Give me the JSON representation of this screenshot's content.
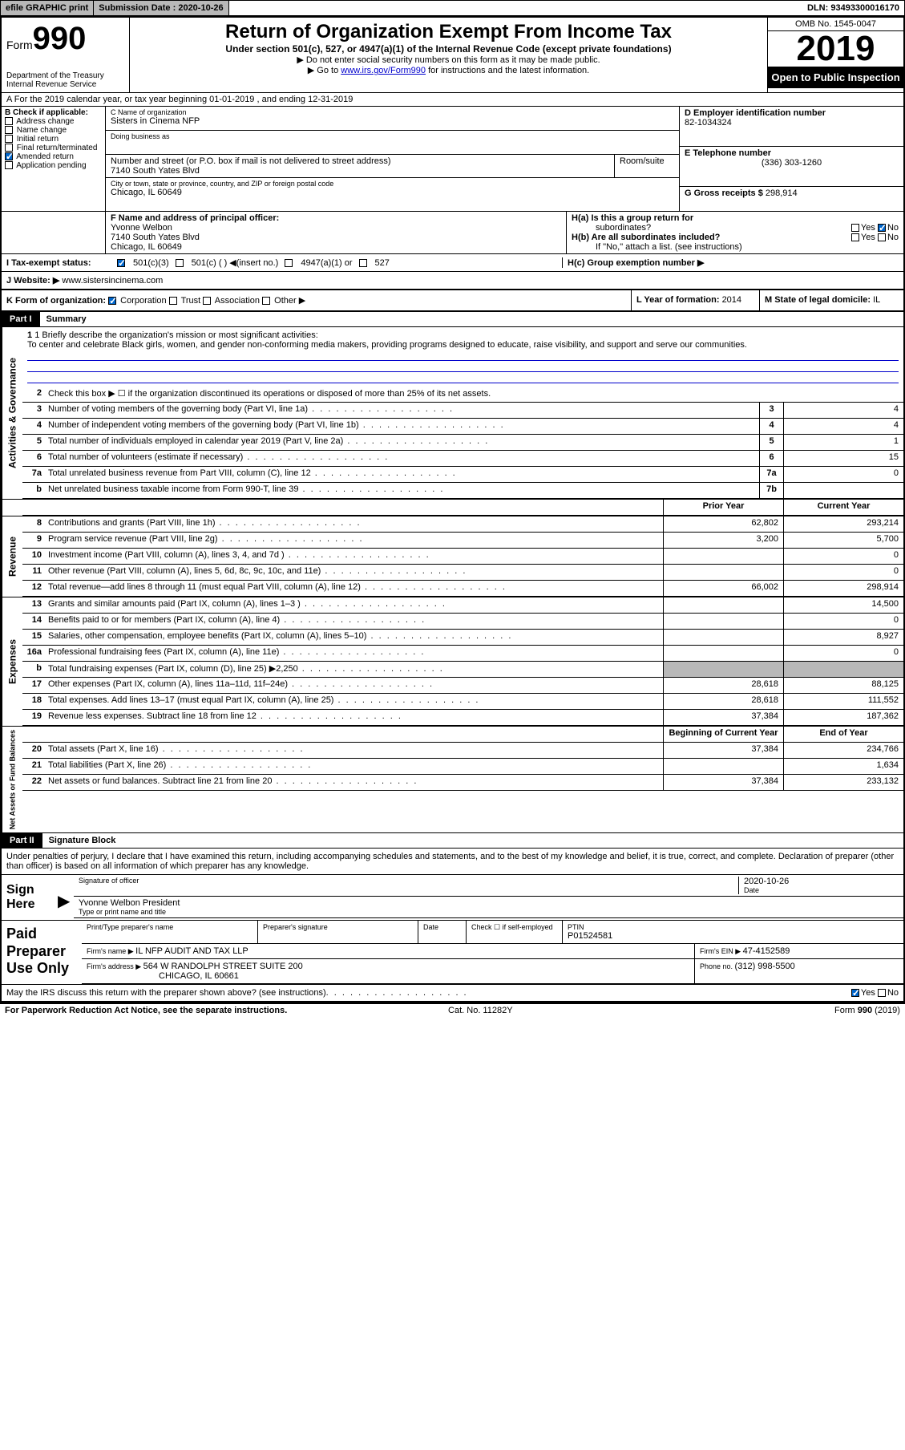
{
  "topbar": {
    "efile": "efile GRAPHIC print",
    "sub_label": "Submission Date : ",
    "sub_date": "2020-10-26",
    "dln_label": "DLN: ",
    "dln": "93493300016170"
  },
  "header": {
    "form_word": "Form",
    "form_num": "990",
    "dept": "Department of the Treasury\nInternal Revenue Service",
    "title": "Return of Organization Exempt From Income Tax",
    "sub1": "Under section 501(c), 527, or 4947(a)(1) of the Internal Revenue Code (except private foundations)",
    "sub2": "▶ Do not enter social security numbers on this form as it may be made public.",
    "sub3_pre": "▶ Go to ",
    "sub3_link": "www.irs.gov/Form990",
    "sub3_post": " for instructions and the latest information.",
    "omb": "OMB No. 1545-0047",
    "year": "2019",
    "open": "Open to Public Inspection"
  },
  "row_a": "A For the 2019 calendar year, or tax year beginning 01-01-2019    , and ending 12-31-2019",
  "col_b": {
    "title": "B Check if applicable:",
    "items": [
      "Address change",
      "Name change",
      "Initial return",
      "Final return/terminated",
      "Amended return",
      "Application pending"
    ],
    "checked": [
      false,
      false,
      false,
      false,
      true,
      false
    ]
  },
  "col_c": {
    "name_lbl": "C Name of organization",
    "name": "Sisters in Cinema NFP",
    "dba_lbl": "Doing business as",
    "dba": "",
    "addr_lbl": "Number and street (or P.O. box if mail is not delivered to street address)",
    "room_lbl": "Room/suite",
    "addr": "7140 South Yates Blvd",
    "city_lbl": "City or town, state or province, country, and ZIP or foreign postal code",
    "city": "Chicago, IL  60649"
  },
  "col_d": {
    "ein_lbl": "D Employer identification number",
    "ein": "82-1034324",
    "tel_lbl": "E Telephone number",
    "tel": "(336) 303-1260",
    "gross_lbl": "G Gross receipts $ ",
    "gross": "298,914"
  },
  "row_f": {
    "lbl": "F  Name and address of principal officer:",
    "name": "Yvonne Welbon",
    "addr1": "7140 South Yates Blvd",
    "addr2": "Chicago, IL  60649"
  },
  "row_h": {
    "ha": "H(a)  Is this a group return for",
    "ha2": "subordinates?",
    "hb": "H(b)  Are all subordinates included?",
    "hb2": "If \"No,\" attach a list. (see instructions)",
    "hc": "H(c)  Group exemption number ▶",
    "yes": "Yes",
    "no": "No"
  },
  "row_i": {
    "lbl": "I  Tax-exempt status:",
    "opts": [
      "501(c)(3)",
      "501(c) (  ) ◀(insert no.)",
      "4947(a)(1) or",
      "527"
    ]
  },
  "row_j": {
    "lbl": "J  Website: ▶ ",
    "val": "www.sistersincinema.com"
  },
  "row_k": {
    "lbl": "K Form of organization:",
    "opts": [
      "Corporation",
      "Trust",
      "Association",
      "Other ▶"
    ],
    "l_lbl": "L Year of formation: ",
    "l_val": "2014",
    "m_lbl": "M State of legal domicile: ",
    "m_val": "IL"
  },
  "part1": {
    "hdr": "Part I",
    "title": "Summary",
    "line1_lbl": "1  Briefly describe the organization's mission or most significant activities:",
    "line1_txt": "To center and celebrate Black girls, women, and gender non-conforming media makers, providing programs designed to educate, raise visibility, and support and serve our communities.",
    "line2": "Check this box ▶ ☐  if the organization discontinued its operations or disposed of more than 25% of its net assets.",
    "prior_hdr": "Prior Year",
    "curr_hdr": "Current Year",
    "boy_hdr": "Beginning of Current Year",
    "eoy_hdr": "End of Year"
  },
  "lines_gov": [
    {
      "n": "3",
      "d": "Number of voting members of the governing body (Part VI, line 1a)",
      "box": "3",
      "v": "4"
    },
    {
      "n": "4",
      "d": "Number of independent voting members of the governing body (Part VI, line 1b)",
      "box": "4",
      "v": "4"
    },
    {
      "n": "5",
      "d": "Total number of individuals employed in calendar year 2019 (Part V, line 2a)",
      "box": "5",
      "v": "1"
    },
    {
      "n": "6",
      "d": "Total number of volunteers (estimate if necessary)",
      "box": "6",
      "v": "15"
    },
    {
      "n": "7a",
      "d": "Total unrelated business revenue from Part VIII, column (C), line 12",
      "box": "7a",
      "v": "0"
    },
    {
      "n": "b",
      "d": "Net unrelated business taxable income from Form 990-T, line 39",
      "box": "7b",
      "v": ""
    }
  ],
  "lines_rev": [
    {
      "n": "8",
      "d": "Contributions and grants (Part VIII, line 1h)",
      "p": "62,802",
      "c": "293,214"
    },
    {
      "n": "9",
      "d": "Program service revenue (Part VIII, line 2g)",
      "p": "3,200",
      "c": "5,700"
    },
    {
      "n": "10",
      "d": "Investment income (Part VIII, column (A), lines 3, 4, and 7d )",
      "p": "",
      "c": "0"
    },
    {
      "n": "11",
      "d": "Other revenue (Part VIII, column (A), lines 5, 6d, 8c, 9c, 10c, and 11e)",
      "p": "",
      "c": "0"
    },
    {
      "n": "12",
      "d": "Total revenue—add lines 8 through 11 (must equal Part VIII, column (A), line 12)",
      "p": "66,002",
      "c": "298,914"
    }
  ],
  "lines_exp": [
    {
      "n": "13",
      "d": "Grants and similar amounts paid (Part IX, column (A), lines 1–3 )",
      "p": "",
      "c": "14,500"
    },
    {
      "n": "14",
      "d": "Benefits paid to or for members (Part IX, column (A), line 4)",
      "p": "",
      "c": "0"
    },
    {
      "n": "15",
      "d": "Salaries, other compensation, employee benefits (Part IX, column (A), lines 5–10)",
      "p": "",
      "c": "8,927"
    },
    {
      "n": "16a",
      "d": "Professional fundraising fees (Part IX, column (A), line 11e)",
      "p": "",
      "c": "0"
    },
    {
      "n": "b",
      "d": "Total fundraising expenses (Part IX, column (D), line 25) ▶2,250",
      "p": "shaded",
      "c": "shaded"
    },
    {
      "n": "17",
      "d": "Other expenses (Part IX, column (A), lines 11a–11d, 11f–24e)",
      "p": "28,618",
      "c": "88,125"
    },
    {
      "n": "18",
      "d": "Total expenses. Add lines 13–17 (must equal Part IX, column (A), line 25)",
      "p": "28,618",
      "c": "111,552"
    },
    {
      "n": "19",
      "d": "Revenue less expenses. Subtract line 18 from line 12",
      "p": "37,384",
      "c": "187,362"
    }
  ],
  "lines_net": [
    {
      "n": "20",
      "d": "Total assets (Part X, line 16)",
      "p": "37,384",
      "c": "234,766"
    },
    {
      "n": "21",
      "d": "Total liabilities (Part X, line 26)",
      "p": "",
      "c": "1,634"
    },
    {
      "n": "22",
      "d": "Net assets or fund balances. Subtract line 21 from line 20",
      "p": "37,384",
      "c": "233,132"
    }
  ],
  "vtabs": {
    "gov": "Activities & Governance",
    "rev": "Revenue",
    "exp": "Expenses",
    "net": "Net Assets or Fund Balances"
  },
  "part2": {
    "hdr": "Part II",
    "title": "Signature Block",
    "decl": "Under penalties of perjury, I declare that I have examined this return, including accompanying schedules and statements, and to the best of my knowledge and belief, it is true, correct, and complete. Declaration of preparer (other than officer) is based on all information of which preparer has any knowledge."
  },
  "sign": {
    "here": "Sign Here",
    "sig_lbl": "Signature of officer",
    "date_lbl": "Date",
    "date": "2020-10-26",
    "name": "Yvonne Welbon President",
    "name_lbl": "Type or print name and title"
  },
  "prep": {
    "lbl": "Paid Preparer Use Only",
    "c1": "Print/Type preparer's name",
    "c2": "Preparer's signature",
    "c3": "Date",
    "c4_lbl": "Check ☐ if self-employed",
    "c5_lbl": "PTIN",
    "c5": "P01524581",
    "firm_lbl": "Firm's name    ▶ ",
    "firm": "IL NFP AUDIT AND TAX LLP",
    "ein_lbl": "Firm's EIN ▶ ",
    "ein": "47-4152589",
    "addr_lbl": "Firm's address ▶ ",
    "addr": "564 W RANDOLPH STREET SUITE 200",
    "addr2": "CHICAGO, IL  60661",
    "ph_lbl": "Phone no. ",
    "ph": "(312) 998-5500",
    "discuss": "May the IRS discuss this return with the preparer shown above? (see instructions)"
  },
  "footer": {
    "l": "For Paperwork Reduction Act Notice, see the separate instructions.",
    "m": "Cat. No. 11282Y",
    "r": "Form 990 (2019)"
  }
}
